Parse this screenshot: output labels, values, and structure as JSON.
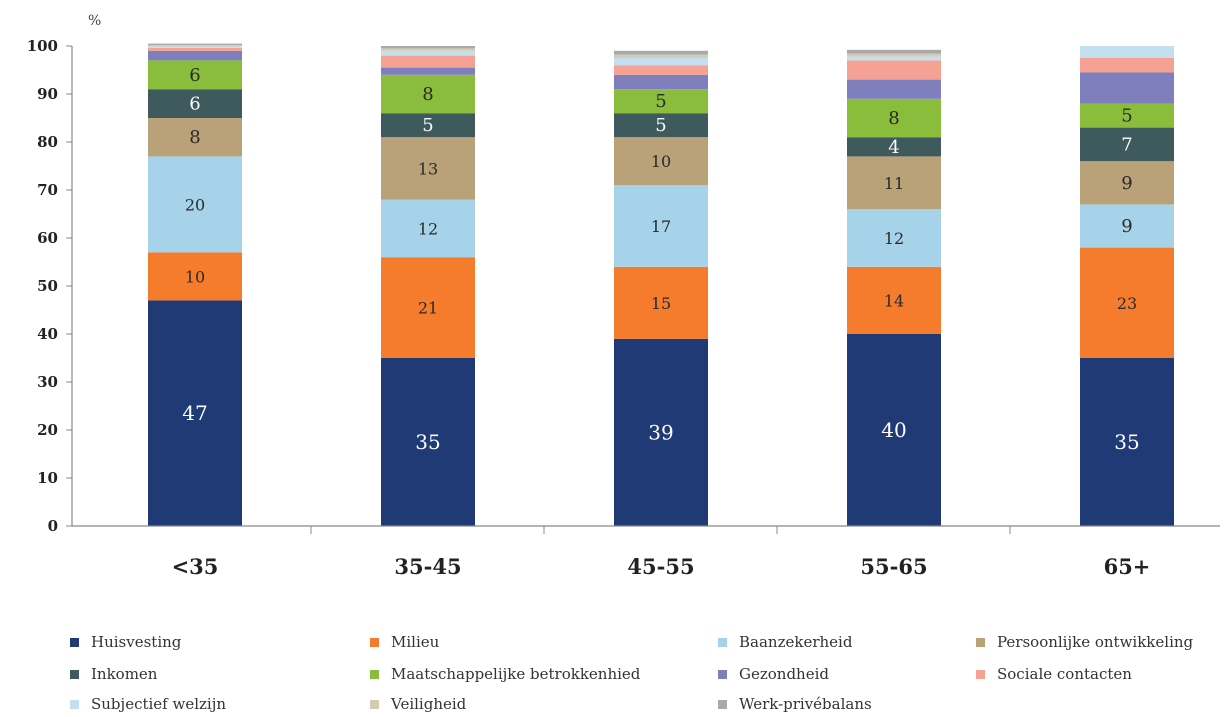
{
  "chart_data": {
    "type": "bar",
    "stacked": true,
    "ylabel": "%",
    "ylim": [
      0,
      100
    ],
    "yticks": [
      0,
      10,
      20,
      30,
      40,
      50,
      60,
      70,
      80,
      90,
      100
    ],
    "categories": [
      "<35",
      "35-45",
      "45-55",
      "55-65",
      "65+"
    ],
    "grid": false,
    "legend_position": "bottom",
    "series": [
      {
        "name": "Huisvesting",
        "color": "#1f3a75",
        "values": [
          47,
          35,
          39,
          40,
          35
        ],
        "labels": [
          "47",
          "35",
          "39",
          "40",
          "35"
        ]
      },
      {
        "name": "Milieu",
        "color": "#f47c2c",
        "values": [
          10,
          21,
          15,
          14,
          23
        ],
        "labels": [
          "10",
          "21",
          "15",
          "14",
          "23"
        ]
      },
      {
        "name": "Baanzekerheid",
        "color": "#a6d3ea",
        "values": [
          20,
          12,
          17,
          12,
          9
        ],
        "labels": [
          "20",
          "12",
          "17",
          "12",
          "9"
        ]
      },
      {
        "name": "Persoonlijke ontwikkeling",
        "color": "#b9a178",
        "values": [
          8,
          13,
          10,
          11,
          9
        ],
        "labels": [
          "8",
          "13",
          "10",
          "11",
          "9"
        ]
      },
      {
        "name": "Inkomen",
        "color": "#3f5a5c",
        "values": [
          6,
          5,
          5,
          4,
          7
        ],
        "labels": [
          "6",
          "5",
          "5",
          "4",
          "7"
        ]
      },
      {
        "name": "Maatschappelijke betrokkenhied",
        "color": "#8bbd3c",
        "values": [
          6,
          8,
          5,
          8,
          5
        ],
        "labels": [
          "6",
          "8",
          "5",
          "8",
          "5"
        ]
      },
      {
        "name": "Gezondheid",
        "color": "#7f7fbd",
        "values": [
          2,
          1.5,
          3,
          4,
          6.5
        ],
        "labels": [
          "",
          "",
          "",
          "",
          ""
        ]
      },
      {
        "name": "Sociale contacten",
        "color": "#f5a193",
        "values": [
          0.6,
          2.5,
          2,
          4,
          3
        ],
        "labels": [
          "",
          "",
          "",
          "",
          ""
        ]
      },
      {
        "name": "Subjectief welzijn",
        "color": "#c4dff0",
        "values": [
          0.3,
          1,
          1.5,
          0.8,
          2.5
        ],
        "labels": [
          "",
          "",
          "",
          "",
          ""
        ]
      },
      {
        "name": "Veiligheid",
        "color": "#d3ccb2",
        "values": [
          0.3,
          0.5,
          0.7,
          0.6,
          0
        ],
        "labels": [
          "",
          "",
          "",
          "",
          ""
        ]
      },
      {
        "name": "Werk-privébalans",
        "color": "#a9a9a9",
        "values": [
          0.3,
          0.5,
          0.8,
          0.8,
          0
        ],
        "labels": [
          "",
          "",
          "",
          "",
          ""
        ]
      }
    ]
  }
}
